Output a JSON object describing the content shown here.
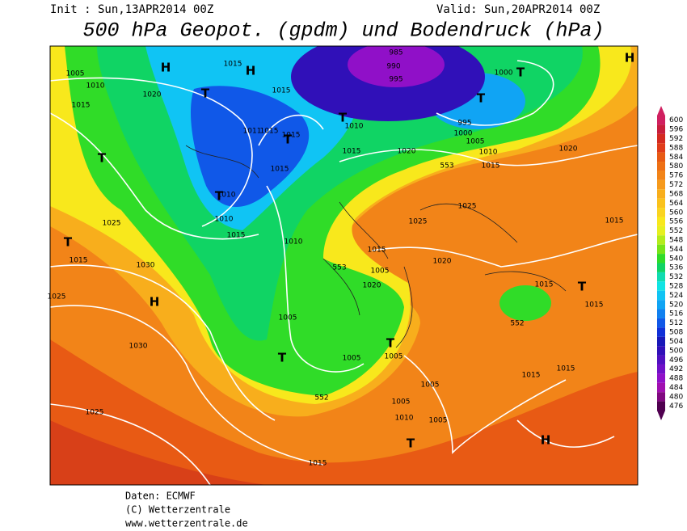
{
  "header": {
    "init": "Init : Sun,13APR2014 00Z",
    "valid": "Valid: Sun,20APR2014 00Z",
    "title": "500 hPa Geopot. (gpdm) und Bodendruck (hPa)"
  },
  "map": {
    "labels": [
      "985",
      "990",
      "995",
      "1000",
      "T",
      "T",
      "H",
      "1005",
      "1010",
      "1015",
      "1020",
      "H",
      "1015",
      "H",
      "T",
      "1015",
      "1011",
      "1015",
      "1015",
      "T",
      "T",
      "1010",
      "995",
      "1000",
      "1005",
      "1010",
      "1015",
      "1015",
      "1020",
      "553",
      "1020",
      "T",
      "1015",
      "1010",
      "T",
      "1010",
      "1015",
      "1025",
      "T",
      "1015",
      "1030",
      "1025",
      "H",
      "1030",
      "1025",
      "1010",
      "1015",
      "553",
      "1005",
      "1020",
      "1025",
      "1025",
      "1020",
      "1015",
      "1015",
      "T",
      "1015",
      "552",
      "1005",
      "T",
      "1005",
      "T",
      "1005",
      "552",
      "1005",
      "1005",
      "1010",
      "1005",
      "1015",
      "1015",
      "T",
      "H",
      "1015"
    ]
  },
  "colorbar": {
    "ticks": [
      600,
      596,
      592,
      588,
      584,
      580,
      576,
      572,
      568,
      564,
      560,
      556,
      552,
      548,
      544,
      540,
      536,
      532,
      528,
      524,
      520,
      516,
      512,
      508,
      504,
      500,
      496,
      492,
      488,
      484,
      480,
      476
    ],
    "colors": [
      "#d02060",
      "#c81e3c",
      "#d42a20",
      "#e03c1a",
      "#e85a14",
      "#ee7014",
      "#f28418",
      "#f69a1c",
      "#f8ae1c",
      "#fac21c",
      "#fad420",
      "#f8e81c",
      "#e6f020",
      "#b4ec1c",
      "#78e418",
      "#30dc28",
      "#10d464",
      "#10dcb0",
      "#10e4e4",
      "#10c4f4",
      "#10a4f4",
      "#1080f0",
      "#1058e8",
      "#1030d8",
      "#1818b8",
      "#3010b8",
      "#5010c0",
      "#7010c8",
      "#9010c8",
      "#a010b0",
      "#800880",
      "#500050"
    ]
  },
  "footer": {
    "lines": [
      "Daten: ECMWF",
      "(C) Wetterzentrale",
      "www.wetterzentrale.de"
    ]
  }
}
